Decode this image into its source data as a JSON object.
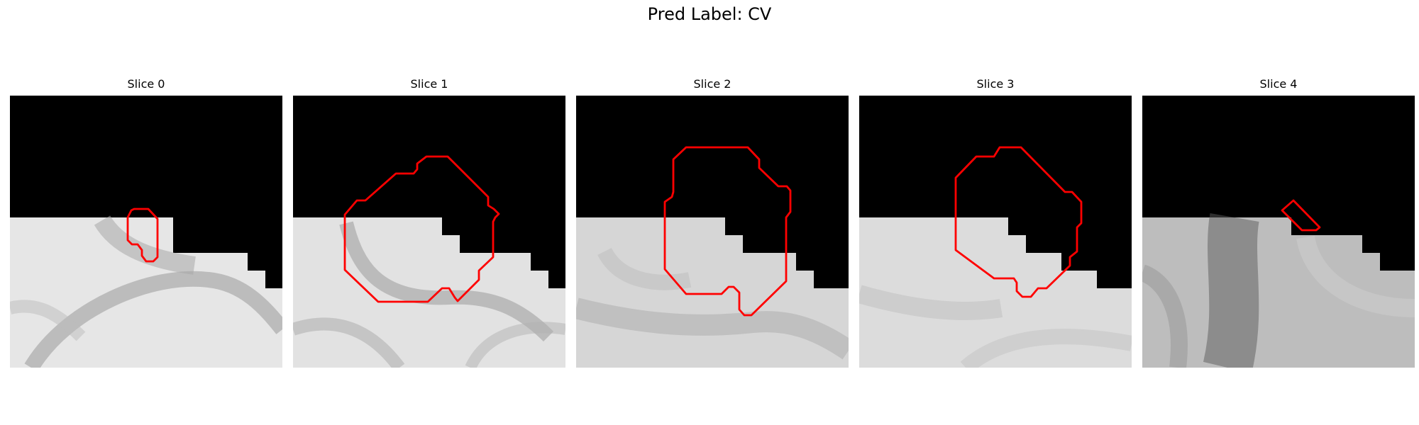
{
  "suptitle": "Pred Label: CV",
  "slices": [
    {
      "title": "Slice 0"
    },
    {
      "title": "Slice 1"
    },
    {
      "title": "Slice 2"
    },
    {
      "title": "Slice 3"
    },
    {
      "title": "Slice 4"
    }
  ],
  "colors": {
    "contour": "#ff0000",
    "background": "#000000"
  }
}
